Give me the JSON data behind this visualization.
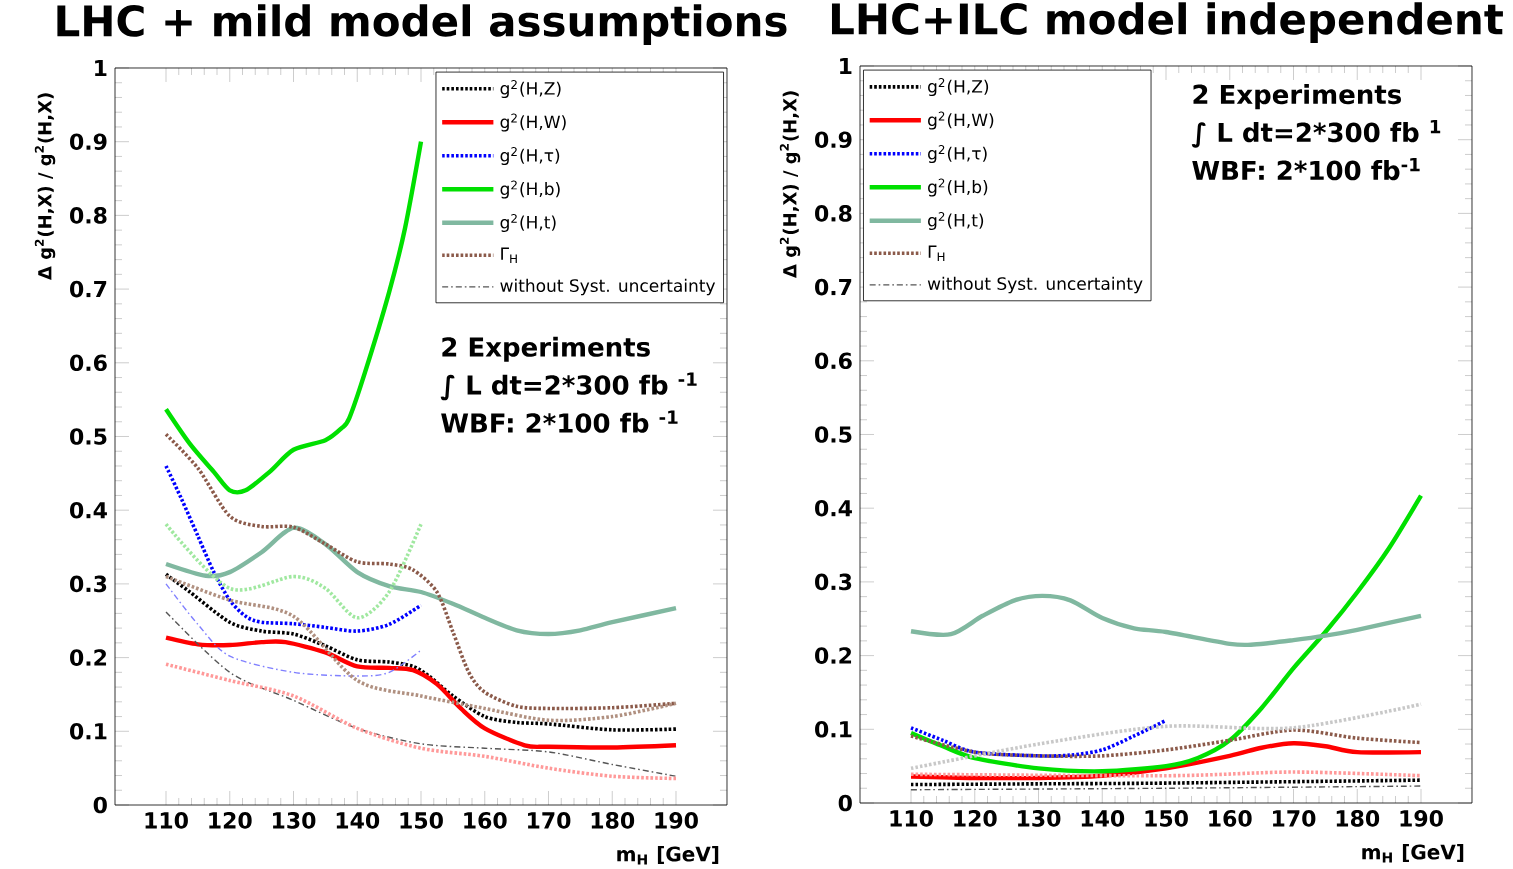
{
  "chart_data": [
    {
      "type": "line",
      "title": "LHC + mild model assumptions",
      "xlabel": "m$_{H}$ [GeV]",
      "ylabel": "Δ g$^{2}$(H,X) / g$^{2}$(H,X)",
      "xlim": [
        102,
        198
      ],
      "ylim": [
        0,
        1
      ],
      "xticks": [
        110,
        120,
        130,
        140,
        150,
        160,
        170,
        180,
        190
      ],
      "yticks": [
        0,
        0.1,
        0.2,
        0.3,
        0.4,
        0.5,
        0.6,
        0.7,
        0.8,
        0.9,
        1
      ],
      "legend": "top right",
      "annotations": [
        "2 Experiments",
        "∫ L dt=2*300 fb $^{-1}$",
        "WBF: 2*100 fb $^{-1}$"
      ],
      "series": [
        {
          "name": "g$^{2}$(H,Z)",
          "color": "#000000",
          "line_style": "dotted",
          "x": [
            110,
            113.75,
            120,
            125,
            130,
            135,
            140,
            145,
            148.75,
            151.25,
            155,
            160,
            165,
            170,
            180,
            190
          ],
          "values": [
            0.313,
            0.289,
            0.248,
            0.236,
            0.232,
            0.216,
            0.197,
            0.194,
            0.188,
            0.175,
            0.148,
            0.12,
            0.112,
            0.11,
            0.102,
            0.103
          ]
        },
        {
          "name": "g$^{2}$(H,W)",
          "color": "#ff0000",
          "line_style": "solid",
          "x": [
            110,
            115,
            120,
            125,
            128.75,
            135,
            140,
            145,
            148.75,
            152.5,
            156.25,
            160,
            166.25,
            170,
            180,
            190
          ],
          "values": [
            0.227,
            0.218,
            0.217,
            0.221,
            0.221,
            0.207,
            0.188,
            0.186,
            0.183,
            0.164,
            0.131,
            0.104,
            0.081,
            0.079,
            0.078,
            0.081
          ]
        },
        {
          "name": "g$^{2}$(H,τ)",
          "color": "#0000ff",
          "line_style": "dotted",
          "x": [
            110,
            112.5,
            115,
            117.5,
            120,
            122.5,
            125,
            130,
            135,
            140,
            145,
            150
          ],
          "values": [
            0.46,
            0.414,
            0.365,
            0.316,
            0.278,
            0.256,
            0.248,
            0.246,
            0.241,
            0.236,
            0.245,
            0.271
          ]
        },
        {
          "name": "g$^{2}$(H,b)",
          "color": "#00e000",
          "line_style": "solid",
          "x": [
            110,
            113.75,
            117.5,
            120,
            122.5,
            126.25,
            130,
            135,
            137.5,
            138.75,
            141.25,
            145,
            147.5,
            150
          ],
          "values": [
            0.537,
            0.49,
            0.452,
            0.427,
            0.427,
            0.452,
            0.482,
            0.495,
            0.511,
            0.525,
            0.588,
            0.696,
            0.783,
            0.9
          ]
        },
        {
          "name": "g$^{2}$(H,t)",
          "color": "#80b8a0",
          "line_style": "solid",
          "x": [
            110,
            116.25,
            120,
            125,
            130,
            135,
            140,
            145,
            150,
            155,
            160,
            165,
            170,
            175,
            180,
            190
          ],
          "values": [
            0.327,
            0.311,
            0.316,
            0.343,
            0.376,
            0.354,
            0.316,
            0.297,
            0.289,
            0.273,
            0.254,
            0.237,
            0.232,
            0.237,
            0.248,
            0.267
          ]
        },
        {
          "name": "Γ$_{H}$",
          "color": "#8b5a4a",
          "line_style": "dotted",
          "x": [
            110,
            115,
            120,
            125,
            130,
            135,
            140,
            145,
            148.75,
            152.5,
            155,
            157.5,
            160,
            165,
            170,
            180,
            190
          ],
          "values": [
            0.503,
            0.457,
            0.392,
            0.378,
            0.377,
            0.354,
            0.33,
            0.327,
            0.319,
            0.289,
            0.235,
            0.18,
            0.153,
            0.134,
            0.131,
            0.132,
            0.138
          ]
        },
        {
          "name": "without Syst. uncertainty",
          "color": "#555555",
          "line_style": "dashed",
          "x": [
            110,
            120,
            130,
            140,
            150,
            160,
            170,
            180,
            190
          ],
          "values": [
            0.262,
            0.18,
            0.142,
            0.104,
            0.083,
            0.077,
            0.072,
            0.055,
            0.039
          ]
        },
        {
          "color": "#ff9999",
          "line_style": "dotted",
          "x": [
            110,
            120,
            130,
            140,
            150,
            160,
            170,
            180,
            190
          ],
          "values": [
            0.191,
            0.169,
            0.148,
            0.104,
            0.077,
            0.066,
            0.05,
            0.039,
            0.036
          ]
        },
        {
          "color": "#8080ff",
          "line_style": "dashed",
          "x": [
            110,
            115,
            120,
            130,
            140,
            145,
            150
          ],
          "values": [
            0.3,
            0.245,
            0.202,
            0.18,
            0.175,
            0.18,
            0.21
          ]
        },
        {
          "color": "#a0e8a0",
          "line_style": "dotted",
          "x": [
            110,
            120,
            130,
            135,
            140,
            145,
            150
          ],
          "values": [
            0.381,
            0.294,
            0.31,
            0.294,
            0.254,
            0.289,
            0.381
          ]
        },
        {
          "color": "#b09080",
          "line_style": "dotted",
          "x": [
            110,
            120,
            130,
            140,
            150,
            160,
            170,
            180,
            190
          ],
          "values": [
            0.31,
            0.278,
            0.256,
            0.169,
            0.148,
            0.131,
            0.115,
            0.12,
            0.138
          ]
        }
      ]
    },
    {
      "type": "line",
      "title": "LHC+ILC model independent",
      "xlabel": "m$_{H}$ [GeV]",
      "ylabel": "Δ g$^{2}$(H,X) / g$^{2}$(H,X)",
      "xlim": [
        102,
        198
      ],
      "ylim": [
        0,
        1
      ],
      "xticks": [
        110,
        120,
        130,
        140,
        150,
        160,
        170,
        180,
        190
      ],
      "yticks": [
        0,
        0.1,
        0.2,
        0.3,
        0.4,
        0.5,
        0.6,
        0.7,
        0.8,
        0.9,
        1
      ],
      "legend": "top left",
      "annotations": [
        "2 Experiments",
        "∫ L dt=2*300 fb $^{1}$",
        "WBF: 2*100 fb$^{-1}$"
      ],
      "series": [
        {
          "name": "g$^{2}$(H,Z)",
          "color": "#000000",
          "line_style": "dotted",
          "x": [
            110,
            130,
            150,
            190
          ],
          "values": [
            0.025,
            0.026,
            0.027,
            0.031
          ]
        },
        {
          "name": "g$^{2}$(H,W)",
          "color": "#ff0000",
          "line_style": "solid",
          "x": [
            110,
            120,
            130,
            140,
            150,
            160,
            165,
            170,
            175,
            180,
            190
          ],
          "values": [
            0.036,
            0.034,
            0.034,
            0.037,
            0.047,
            0.064,
            0.075,
            0.081,
            0.077,
            0.069,
            0.069
          ]
        },
        {
          "name": "g$^{2}$(H,τ)",
          "color": "#0000ff",
          "line_style": "dotted",
          "x": [
            110,
            115,
            120,
            130,
            135,
            140,
            145,
            150
          ],
          "values": [
            0.102,
            0.085,
            0.069,
            0.064,
            0.065,
            0.072,
            0.091,
            0.112
          ]
        },
        {
          "name": "g$^{2}$(H,b)",
          "color": "#00e000",
          "line_style": "solid",
          "x": [
            110,
            115,
            120,
            130,
            140,
            150,
            155,
            160,
            165,
            170,
            175,
            180,
            185,
            190
          ],
          "values": [
            0.095,
            0.077,
            0.061,
            0.047,
            0.043,
            0.05,
            0.061,
            0.085,
            0.129,
            0.183,
            0.232,
            0.286,
            0.346,
            0.417
          ]
        },
        {
          "name": "g$^{2}$(H,t)",
          "color": "#80b8a0",
          "line_style": "solid",
          "x": [
            110,
            116.25,
            121.25,
            126.25,
            130.6,
            135,
            140,
            145,
            150,
            160,
            163.75,
            170,
            175,
            180,
            190
          ],
          "values": [
            0.233,
            0.229,
            0.254,
            0.275,
            0.281,
            0.275,
            0.251,
            0.237,
            0.232,
            0.216,
            0.215,
            0.221,
            0.227,
            0.235,
            0.254
          ]
        },
        {
          "name": "Γ$_{H}$",
          "color": "#8b5a4a",
          "line_style": "dotted",
          "x": [
            110,
            120,
            130,
            140,
            150,
            160,
            170,
            180,
            190
          ],
          "values": [
            0.091,
            0.069,
            0.064,
            0.064,
            0.072,
            0.085,
            0.099,
            0.088,
            0.082
          ]
        },
        {
          "name": "without Syst. uncertainty",
          "color": "#555555",
          "line_style": "dashed",
          "x": [
            110,
            150,
            190
          ],
          "values": [
            0.018,
            0.02,
            0.023
          ]
        },
        {
          "color": "#c8c8c8",
          "line_style": "dotted",
          "x": [
            110,
            130,
            150,
            170,
            190
          ],
          "values": [
            0.047,
            0.08,
            0.104,
            0.102,
            0.134
          ]
        },
        {
          "color": "#ff9999",
          "line_style": "dotted",
          "x": [
            110,
            150,
            170,
            190
          ],
          "values": [
            0.039,
            0.037,
            0.042,
            0.037
          ]
        }
      ]
    }
  ]
}
